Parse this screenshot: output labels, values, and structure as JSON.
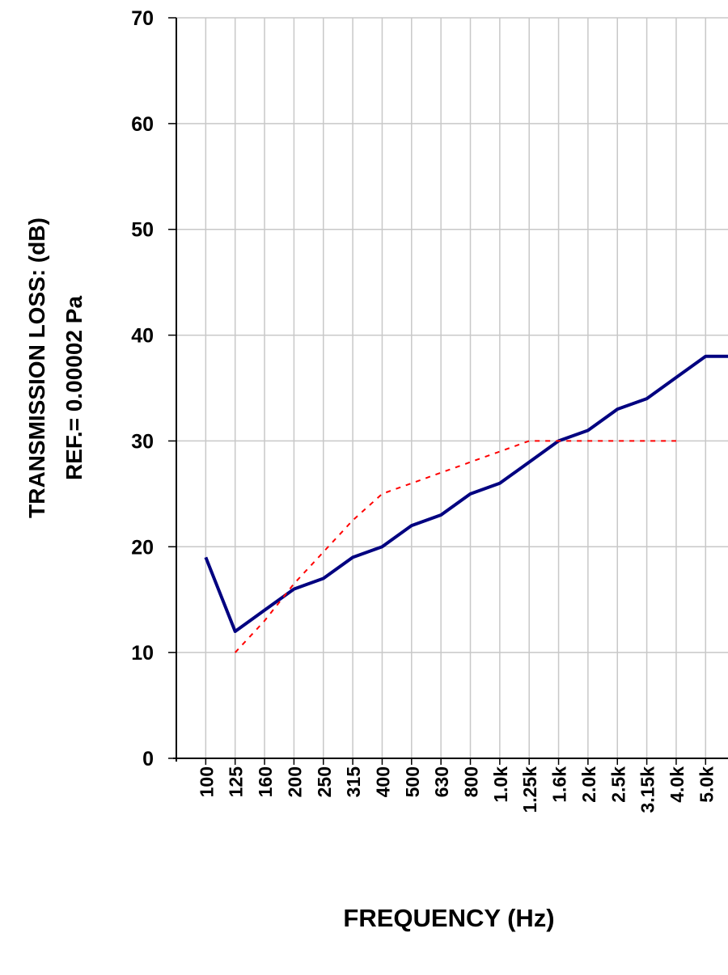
{
  "chart_data": {
    "type": "line",
    "ylabel": [
      "TRANSMISSION LOSS:     (dB)",
      "REF.= 0.00002 Pa"
    ],
    "xlabel": "FREQUENCY   (Hz)",
    "categories": [
      "100",
      "125",
      "160",
      "200",
      "250",
      "315",
      "400",
      "500",
      "630",
      "800",
      "1.0k",
      "1.25k",
      "1.6k",
      "2.0k",
      "2.5k",
      "3.15k",
      "4.0k",
      "5.0k",
      null
    ],
    "series": [
      {
        "color": "#000080",
        "style": "solid",
        "values": [
          19,
          12,
          14,
          16,
          17,
          19,
          20,
          22,
          23,
          25,
          26,
          28,
          30,
          31,
          33,
          34,
          36,
          38,
          38
        ]
      },
      {
        "color": "#ff0000",
        "style": "dashed",
        "values": [
          null,
          10,
          13,
          16.5,
          19.5,
          22.5,
          25,
          26,
          27,
          28,
          29,
          30,
          30,
          30,
          30,
          30,
          30,
          null,
          null
        ]
      }
    ],
    "ylim": [
      0,
      70
    ],
    "yticks": [
      0,
      10,
      20,
      30,
      40,
      50,
      60,
      70
    ],
    "grid": true
  }
}
